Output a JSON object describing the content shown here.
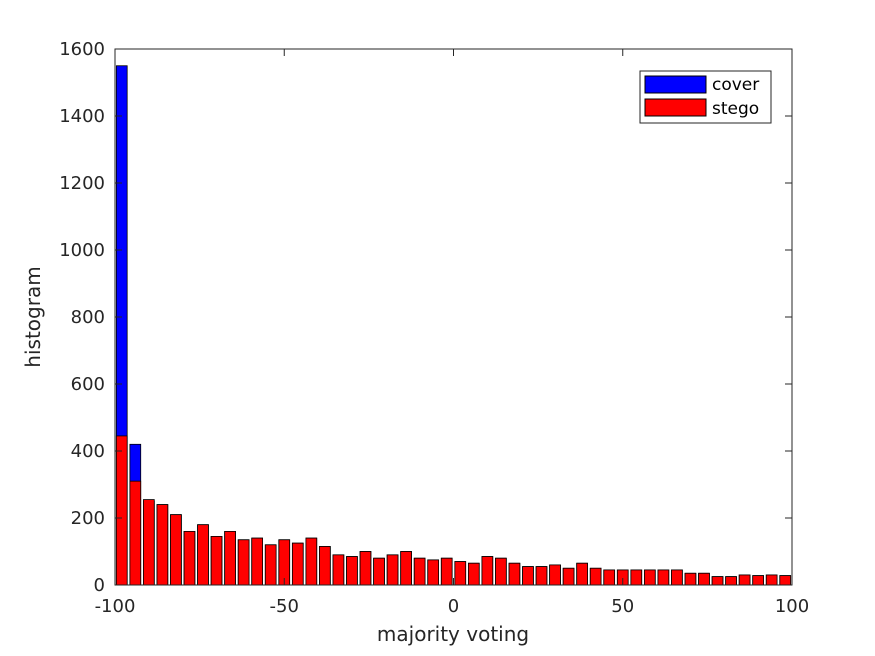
{
  "chart_data": {
    "type": "bar",
    "title": "",
    "xlabel": "majority voting",
    "ylabel": "histogram",
    "xlim": [
      -100,
      100
    ],
    "ylim": [
      0,
      1600
    ],
    "xticks": [
      -100,
      -50,
      0,
      50,
      100
    ],
    "xtick_labels": [
      "-100",
      "-50",
      "0",
      "50",
      "100"
    ],
    "yticks": [
      0,
      200,
      400,
      600,
      800,
      1000,
      1200,
      1400,
      1600
    ],
    "ytick_labels": [
      "0",
      "200",
      "400",
      "600",
      "800",
      "1000",
      "1200",
      "1400",
      "1600"
    ],
    "bin_width": 4,
    "x": [
      -98,
      -94,
      -90,
      -86,
      -82,
      -78,
      -74,
      -70,
      -66,
      -62,
      -58,
      -54,
      -50,
      -46,
      -42,
      -38,
      -34,
      -30,
      -26,
      -22,
      -18,
      -14,
      -10,
      -6,
      -2,
      2,
      6,
      10,
      14,
      18,
      22,
      26,
      30,
      34,
      38,
      42,
      46,
      50,
      54,
      58,
      62,
      66,
      70,
      74,
      78,
      82,
      86,
      90,
      94,
      98
    ],
    "series": [
      {
        "name": "cover",
        "color": "#0000ff",
        "values": [
          1550,
          420,
          250,
          240,
          210,
          160,
          180,
          145,
          160,
          135,
          140,
          120,
          135,
          125,
          140,
          115,
          90,
          85,
          100,
          80,
          90,
          100,
          80,
          75,
          80,
          70,
          65,
          85,
          80,
          65,
          55,
          55,
          60,
          50,
          65,
          50,
          45,
          45,
          45,
          45,
          45,
          45,
          35,
          35,
          25,
          25,
          30,
          28,
          30,
          28
        ]
      },
      {
        "name": "stego",
        "color": "#ff0000",
        "values": [
          445,
          310,
          255,
          240,
          210,
          160,
          180,
          145,
          160,
          135,
          140,
          120,
          135,
          125,
          140,
          115,
          90,
          85,
          100,
          80,
          90,
          100,
          80,
          75,
          80,
          70,
          65,
          85,
          80,
          65,
          55,
          55,
          60,
          50,
          65,
          50,
          45,
          45,
          45,
          45,
          45,
          45,
          35,
          35,
          25,
          25,
          30,
          28,
          30,
          28
        ]
      }
    ],
    "legend": {
      "position": "top-right",
      "entries": [
        "cover",
        "stego"
      ]
    },
    "grid": false
  }
}
